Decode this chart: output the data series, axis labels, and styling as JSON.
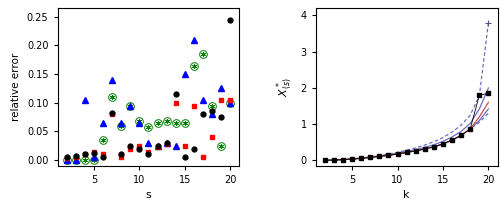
{
  "left": {
    "s_values": [
      2,
      3,
      4,
      5,
      6,
      7,
      8,
      9,
      10,
      11,
      12,
      13,
      14,
      15,
      16,
      17,
      18,
      19,
      20
    ],
    "black_circles": [
      0.005,
      0.008,
      0.01,
      0.013,
      0.005,
      0.082,
      0.01,
      0.025,
      0.02,
      0.01,
      0.025,
      0.03,
      0.115,
      0.005,
      0.02,
      0.08,
      0.085,
      0.075,
      0.245
    ],
    "red_squares": [
      0.003,
      0.005,
      0.01,
      0.015,
      0.01,
      0.08,
      0.005,
      0.02,
      0.025,
      0.015,
      0.022,
      0.028,
      0.1,
      0.025,
      0.095,
      0.005,
      0.04,
      0.105,
      0.105
    ],
    "blue_triangles": [
      0.0,
      0.0,
      0.105,
      0.005,
      0.065,
      0.14,
      0.065,
      0.095,
      0.065,
      0.03,
      0.025,
      0.03,
      0.025,
      0.15,
      0.21,
      0.105,
      0.08,
      0.125,
      0.1
    ],
    "green_stars": [
      0.0,
      0.0,
      0.0,
      0.0,
      0.035,
      0.11,
      0.06,
      0.095,
      0.068,
      0.058,
      0.065,
      0.068,
      0.065,
      0.065,
      0.165,
      0.185,
      0.095,
      0.025,
      0.1
    ],
    "xlabel": "s",
    "ylabel": "relative error",
    "xlim": [
      1,
      21
    ],
    "ylim": [
      -0.01,
      0.265
    ],
    "yticks": [
      0.0,
      0.05,
      0.1,
      0.15,
      0.2,
      0.25
    ],
    "xticks": [
      5,
      10,
      15,
      20
    ]
  },
  "right": {
    "k_values": [
      2,
      3,
      4,
      5,
      6,
      7,
      8,
      9,
      10,
      11,
      12,
      13,
      14,
      15,
      16,
      17,
      18,
      19,
      20
    ],
    "black_points": [
      0.002,
      0.01,
      0.022,
      0.038,
      0.058,
      0.082,
      0.11,
      0.14,
      0.178,
      0.22,
      0.265,
      0.315,
      0.375,
      0.455,
      0.56,
      0.69,
      0.87,
      1.8,
      1.85
    ],
    "red_line": [
      0.002,
      0.01,
      0.022,
      0.038,
      0.058,
      0.082,
      0.11,
      0.14,
      0.178,
      0.22,
      0.265,
      0.315,
      0.375,
      0.455,
      0.56,
      0.69,
      0.87,
      1.2,
      1.6
    ],
    "blue_solid_lower": [
      0.002,
      0.01,
      0.022,
      0.038,
      0.058,
      0.082,
      0.11,
      0.14,
      0.178,
      0.22,
      0.265,
      0.315,
      0.375,
      0.455,
      0.56,
      0.69,
      0.87,
      1.1,
      1.42
    ],
    "blue_solid_upper": [
      0.002,
      0.01,
      0.022,
      0.04,
      0.062,
      0.09,
      0.122,
      0.158,
      0.2,
      0.248,
      0.3,
      0.36,
      0.432,
      0.525,
      0.648,
      0.8,
      1.02,
      1.42,
      2.0
    ],
    "blue_dashed_lower": [
      0.002,
      0.01,
      0.022,
      0.038,
      0.058,
      0.082,
      0.11,
      0.14,
      0.178,
      0.22,
      0.265,
      0.315,
      0.375,
      0.455,
      0.56,
      0.69,
      0.87,
      1.05,
      1.3
    ],
    "blue_dashed_upper": [
      0.002,
      0.01,
      0.024,
      0.042,
      0.066,
      0.096,
      0.132,
      0.174,
      0.224,
      0.282,
      0.348,
      0.424,
      0.515,
      0.63,
      0.78,
      0.975,
      1.25,
      1.78,
      3.8
    ],
    "xlabel": "k",
    "ylabel": "X_{(s)}^*",
    "xlim": [
      1,
      21
    ],
    "ylim": [
      -0.15,
      4.2
    ],
    "yticks": [
      0,
      1,
      2,
      3,
      4
    ],
    "xticks": [
      5,
      10,
      15,
      20
    ],
    "blue_color": "#6666bb",
    "red_color": "#cc4444"
  }
}
